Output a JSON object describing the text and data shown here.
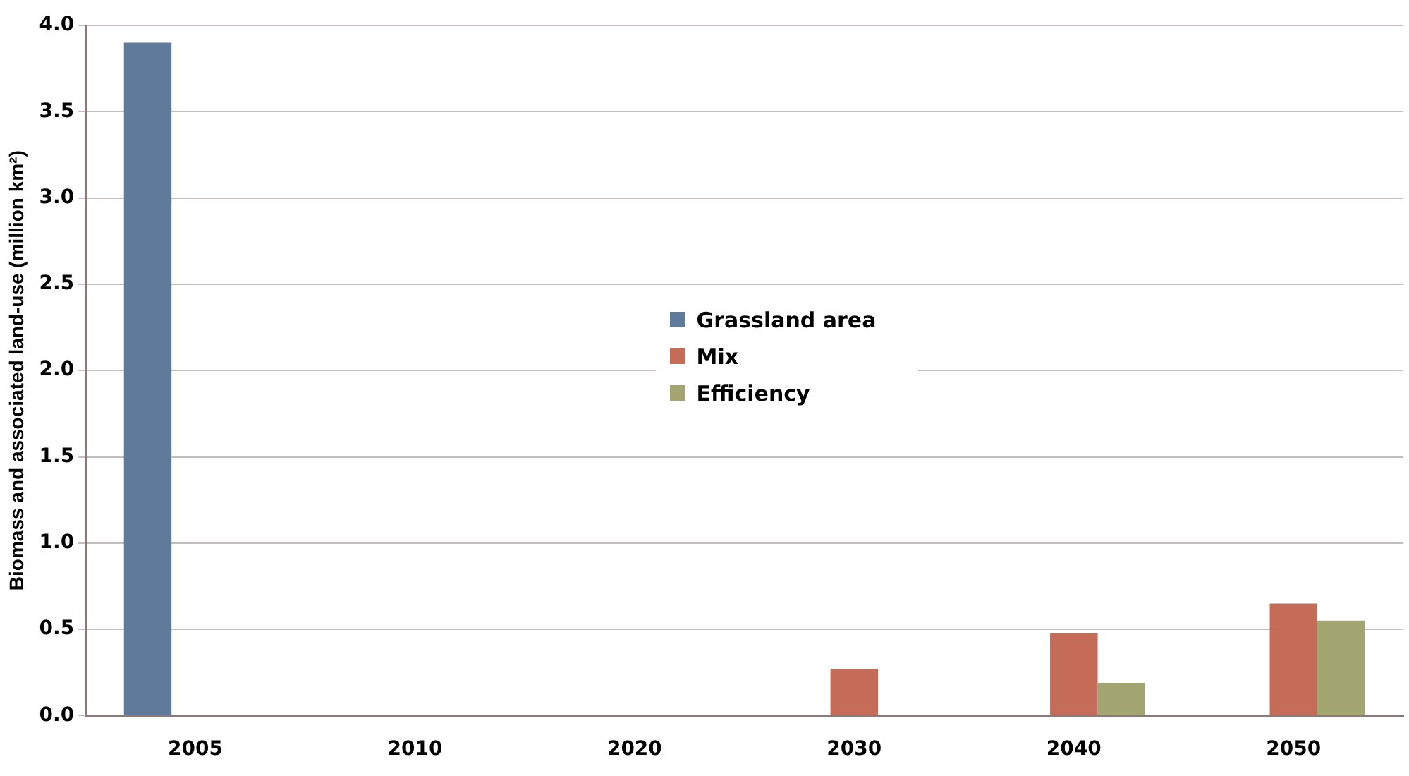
{
  "chart_data": {
    "type": "bar",
    "ylabel": "Biomass and associated land-use (million km²)",
    "categories": [
      "2005",
      "2010",
      "2020",
      "2030",
      "2040",
      "2050"
    ],
    "series": [
      {
        "name": "Grassland area",
        "color": "#5f7a9a",
        "values": [
          3.9,
          null,
          null,
          null,
          null,
          null
        ]
      },
      {
        "name": "Mix",
        "color": "#c46c58",
        "values": [
          null,
          null,
          null,
          0.27,
          0.48,
          0.65
        ]
      },
      {
        "name": "Efficiency",
        "color": "#a3a570",
        "values": [
          null,
          null,
          null,
          null,
          0.19,
          0.55
        ]
      }
    ],
    "ylim": [
      0,
      4
    ],
    "yticks": [
      {
        "value": 0,
        "label": "0.0"
      },
      0.5,
      {
        "value": 1,
        "label": "1.0"
      },
      1.5,
      {
        "value": 2,
        "label": "2.0"
      },
      2.5,
      {
        "value": 3,
        "label": "3.0"
      },
      3.5,
      {
        "value": 4,
        "label": "4.0"
      }
    ],
    "grid": "y",
    "legend": "center"
  }
}
